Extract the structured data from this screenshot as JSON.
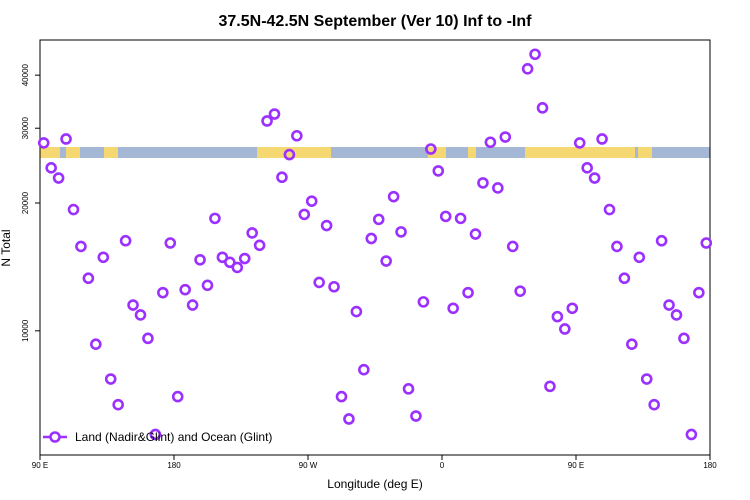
{
  "chart_data": {
    "type": "scatter",
    "title": "37.5N-42.5N September (Ver 10)   Inf to -Inf",
    "xlabel": "Longitude (deg E)",
    "ylabel": "N Total",
    "x": [
      92.5,
      97.5,
      102.5,
      107.5,
      112.5,
      117.5,
      122.5,
      127.5,
      132.5,
      137.5,
      142.5,
      147.5,
      152.5,
      157.5,
      162.5,
      167.5,
      172.5,
      177.5,
      182.5,
      187.5,
      192.5,
      197.5,
      202.5,
      207.5,
      212.5,
      217.5,
      222.5,
      227.5,
      232.5,
      237.5,
      242.5,
      247.5,
      252.5,
      257.5,
      262.5,
      267.5,
      272.5,
      277.5,
      282.5,
      287.5,
      292.5,
      297.5,
      302.5,
      307.5,
      312.5,
      317.5,
      322.5,
      327.5,
      332.5,
      337.5,
      342.5,
      347.5,
      352.5,
      357.5,
      362.5,
      367.5,
      372.5,
      377.5,
      382.5,
      387.5,
      392.5,
      397.5,
      402.5,
      407.5,
      412.5,
      417.5,
      422.5,
      427.5,
      432.5,
      437.5,
      442.5,
      447.5,
      452.5,
      457.5,
      462.5,
      467.5,
      472.5,
      477.5,
      482.5,
      487.5,
      492.5,
      497.5,
      502.5,
      507.5,
      512.5,
      517.5,
      522.5,
      527.5,
      532.5,
      537.5
    ],
    "series": [
      {
        "name": "Land (Nadir&Glint) and Ocean (Glint)",
        "color": "#9b30ff",
        "values": [
          27700,
          24200,
          22900,
          28300,
          19300,
          15800,
          13300,
          9300,
          14900,
          7700,
          6700,
          16300,
          11500,
          10900,
          9600,
          5700,
          12300,
          16100,
          7000,
          12500,
          11500,
          14700,
          12800,
          18400,
          14900,
          14500,
          14100,
          14800,
          17000,
          15900,
          31200,
          32400,
          23000,
          26000,
          28800,
          18800,
          20200,
          13000,
          17700,
          12700,
          7000,
          6200,
          11100,
          8100,
          16500,
          18300,
          14600,
          20700,
          17100,
          7300,
          6300,
          11700,
          26800,
          23800,
          18600,
          11300,
          18400,
          12300,
          16900,
          22300,
          27800,
          21700,
          28600,
          15800,
          12400,
          41400,
          44800,
          33500,
          7400,
          10800,
          10100,
          11300,
          27700,
          24200,
          22900,
          28300,
          19300,
          15800,
          13300,
          9300,
          14900,
          7700,
          6700,
          16300,
          11500,
          10900,
          9600,
          5700,
          12300,
          16100
        ]
      }
    ],
    "xlim": [
      90,
      540
    ],
    "xticks": [
      {
        "value": 90,
        "label": "90 E"
      },
      180,
      {
        "value": 270,
        "label": "90 W"
      },
      {
        "value": 360,
        "label": "0"
      },
      {
        "value": 450,
        "label": "90 E"
      },
      {
        "value": 540,
        "label": "180"
      }
    ],
    "ylim": [
      5100,
      48400
    ],
    "yticks": [
      10000,
      20000,
      30000,
      40000
    ],
    "ylog": true,
    "legend": "bottom-left"
  }
}
